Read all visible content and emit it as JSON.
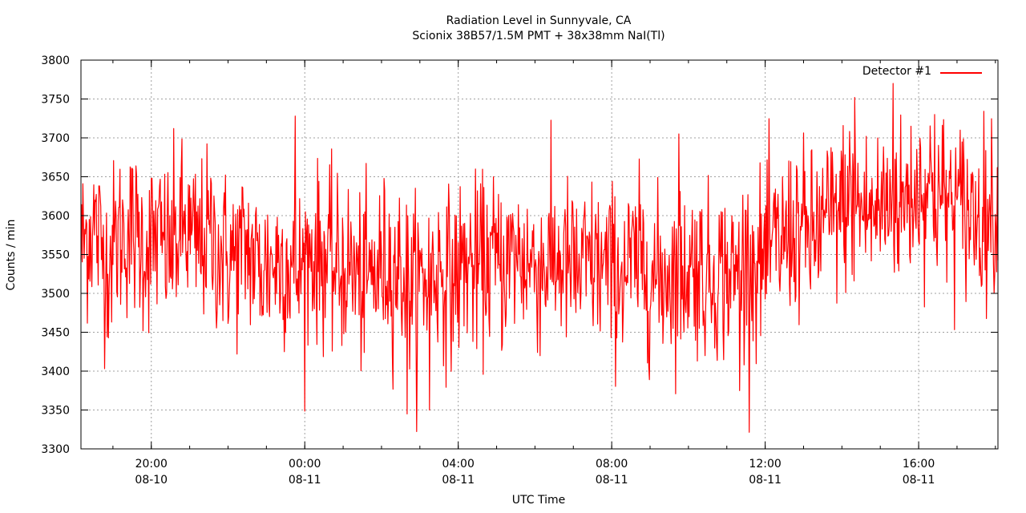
{
  "chart_data": {
    "type": "line",
    "title": "Radiation Level in Sunnyvale, CA",
    "subtitle": "Scionix 38B57/1.5M PMT + 38x38mm NaI(Tl)",
    "xlabel": "UTC Time",
    "ylabel": "Counts / min",
    "ylim": [
      3300,
      3800
    ],
    "yticks": [
      3300,
      3350,
      3400,
      3450,
      3500,
      3550,
      3600,
      3650,
      3700,
      3750,
      3800
    ],
    "xlim": [
      "2010-08-10T18:10",
      "2010-08-11T18:04"
    ],
    "xticks": [
      {
        "value": "2010-08-10T20:00",
        "time": "20:00",
        "date": "08-10"
      },
      {
        "value": "2010-08-11T00:00",
        "time": "00:00",
        "date": "08-11"
      },
      {
        "value": "2010-08-11T04:00",
        "time": "04:00",
        "date": "08-11"
      },
      {
        "value": "2010-08-11T08:00",
        "time": "08:00",
        "date": "08-11"
      },
      {
        "value": "2010-08-11T12:00",
        "time": "12:00",
        "date": "08-11"
      },
      {
        "value": "2010-08-11T16:00",
        "time": "16:00",
        "date": "08-11"
      }
    ],
    "grid": true,
    "legend": "top-right",
    "series": [
      {
        "name": "Detector #1",
        "color": "#ff0000",
        "x": [
          "2010-08-10T18:10",
          "2010-08-10T18:30",
          "2010-08-10T18:50",
          "2010-08-10T19:10",
          "2010-08-10T19:30",
          "2010-08-10T19:50",
          "2010-08-10T20:10",
          "2010-08-10T20:30",
          "2010-08-10T20:50",
          "2010-08-10T21:10",
          "2010-08-10T21:30",
          "2010-08-10T21:50",
          "2010-08-10T22:10",
          "2010-08-10T22:30",
          "2010-08-10T22:50",
          "2010-08-10T23:10",
          "2010-08-10T23:30",
          "2010-08-10T23:50",
          "2010-08-11T00:10",
          "2010-08-11T00:30",
          "2010-08-11T00:50",
          "2010-08-11T01:10",
          "2010-08-11T01:30",
          "2010-08-11T01:50",
          "2010-08-11T02:10",
          "2010-08-11T02:30",
          "2010-08-11T02:50",
          "2010-08-11T03:10",
          "2010-08-11T03:30",
          "2010-08-11T03:50",
          "2010-08-11T04:10",
          "2010-08-11T04:30",
          "2010-08-11T04:50",
          "2010-08-11T05:10",
          "2010-08-11T05:30",
          "2010-08-11T05:50",
          "2010-08-11T06:10",
          "2010-08-11T06:30",
          "2010-08-11T06:50",
          "2010-08-11T07:10",
          "2010-08-11T07:30",
          "2010-08-11T07:50",
          "2010-08-11T08:10",
          "2010-08-11T08:30",
          "2010-08-11T08:50",
          "2010-08-11T09:10",
          "2010-08-11T09:30",
          "2010-08-11T09:50",
          "2010-08-11T10:10",
          "2010-08-11T10:30",
          "2010-08-11T10:50",
          "2010-08-11T11:10",
          "2010-08-11T11:30",
          "2010-08-11T11:50",
          "2010-08-11T12:10",
          "2010-08-11T12:30",
          "2010-08-11T12:50",
          "2010-08-11T13:10",
          "2010-08-11T13:30",
          "2010-08-11T13:50",
          "2010-08-11T14:10",
          "2010-08-11T14:30",
          "2010-08-11T14:50",
          "2010-08-11T15:10",
          "2010-08-11T15:30",
          "2010-08-11T15:50",
          "2010-08-11T16:10",
          "2010-08-11T16:30",
          "2010-08-11T16:50",
          "2010-08-11T17:10",
          "2010-08-11T17:30",
          "2010-08-11T17:50"
        ],
        "y": [
          3560,
          3590,
          3540,
          3575,
          3580,
          3560,
          3570,
          3555,
          3585,
          3560,
          3575,
          3550,
          3545,
          3560,
          3530,
          3540,
          3545,
          3525,
          3555,
          3545,
          3530,
          3535,
          3510,
          3525,
          3540,
          3530,
          3505,
          3520,
          3535,
          3515,
          3540,
          3530,
          3545,
          3535,
          3550,
          3540,
          3535,
          3545,
          3535,
          3525,
          3540,
          3530,
          3525,
          3535,
          3540,
          3515,
          3530,
          3525,
          3540,
          3520,
          3530,
          3520,
          3545,
          3535,
          3555,
          3570,
          3585,
          3570,
          3590,
          3600,
          3620,
          3610,
          3600,
          3620,
          3610,
          3630,
          3640,
          3625,
          3615,
          3610,
          3600,
          3605
        ],
        "peaks": [
          {
            "x": "2010-08-10T20:35",
            "y": 3712
          },
          {
            "x": "2010-08-10T23:45",
            "y": 3728
          },
          {
            "x": "2010-08-11T02:40",
            "y": 3345
          },
          {
            "x": "2010-08-11T03:15",
            "y": 3350
          },
          {
            "x": "2010-08-11T09:45",
            "y": 3705
          },
          {
            "x": "2010-08-11T11:20",
            "y": 3375
          },
          {
            "x": "2010-08-11T14:20",
            "y": 3752
          },
          {
            "x": "2010-08-11T15:20",
            "y": 3770
          },
          {
            "x": "2010-08-11T16:25",
            "y": 3730
          }
        ]
      }
    ]
  }
}
